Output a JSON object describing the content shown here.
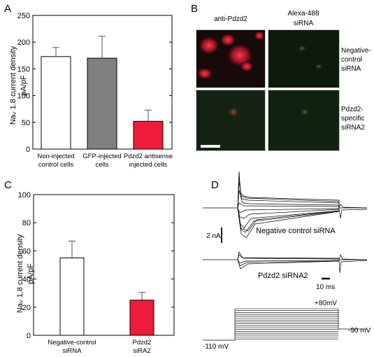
{
  "panels": {
    "a": {
      "letter": "A",
      "ylabel": "Na",
      "ylabel_sub": "V",
      "ylabel_rest": " 1.8 current density",
      "ylabel_unit": "pA/pF"
    },
    "b": {
      "letter": "B",
      "col1_title": "anti-Pdzd2",
      "col2_title_line1": "Alexa-488",
      "col2_title_line2": "siRNA",
      "row1_label_line1": "Negative-",
      "row1_label_line2": "control",
      "row1_label_line3": "siRNA",
      "row2_label_line1": "Pdzd2-",
      "row2_label_line2": "specific",
      "row2_label_line3": "siRNA2"
    },
    "c": {
      "letter": "C",
      "ylabel": "Na",
      "ylabel_sub": "V",
      "ylabel_rest": " 1.8 current density",
      "ylabel_unit": "pA/pF"
    },
    "d": {
      "letter": "D",
      "scale_current": "2 nA",
      "trace1_label": "Negative control siRNA",
      "trace2_label": "Pdzd2 siRNA2",
      "scale_time": "10 ms",
      "v_top": "+80mV",
      "v_hold": "-110 mV",
      "v_end": "-90 mV"
    }
  },
  "chart_data": [
    {
      "type": "bar",
      "panel": "A",
      "categories": [
        "Non-injected control cells",
        "GFP-injected cells",
        "Pdzd2 antisense injected cells"
      ],
      "category_lines": [
        [
          "Non-injected",
          "control cells"
        ],
        [
          "GFP-injected",
          "cells"
        ],
        [
          "Pdzd2 antisense",
          "injected cells"
        ]
      ],
      "values": [
        173,
        170,
        52
      ],
      "errors": [
        17,
        41,
        21
      ],
      "colors": [
        "#ffffff",
        "#808080",
        "#ee1c3a"
      ],
      "ylim": [
        0,
        250
      ],
      "yticks": [
        0,
        50,
        100,
        150,
        200,
        250
      ],
      "ylabel": "NaV 1.8 current density pA/pF"
    },
    {
      "type": "bar",
      "panel": "C",
      "categories": [
        "Negative-control siRNA",
        "Pdzd2 siRA2"
      ],
      "category_lines": [
        [
          "Negative-control",
          "siRNA"
        ],
        [
          "Pdzd2",
          "siRA2"
        ]
      ],
      "values": [
        55,
        25
      ],
      "errors": [
        12,
        5.5
      ],
      "colors": [
        "#ffffff",
        "#ee1c3a"
      ],
      "ylim": [
        0,
        100
      ],
      "yticks": [
        0,
        20,
        40,
        60,
        80,
        100
      ],
      "ylabel": "NaV 1.8 current density pA/pF"
    }
  ]
}
